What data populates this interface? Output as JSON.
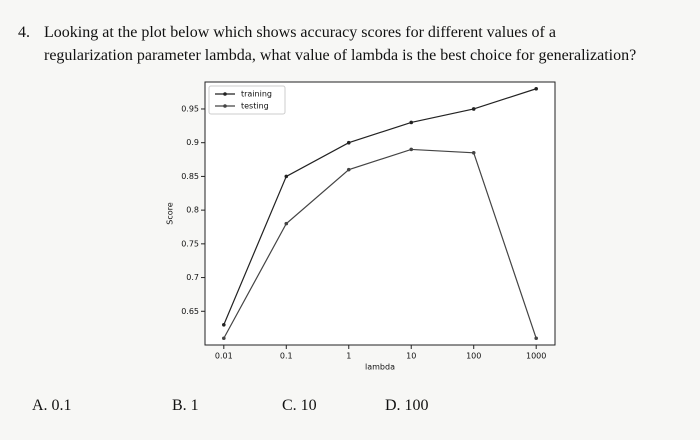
{
  "question": {
    "number": "4.",
    "text_line1": "Looking at the plot below which shows accuracy scores for different values of a",
    "text_line2": "regularization parameter lambda, what value of lambda is the best choice for generalization?"
  },
  "chart_data": {
    "type": "line",
    "xlabel": "lambda",
    "ylabel": "Score",
    "x": [
      0.01,
      0.1,
      1,
      10,
      100,
      1000
    ],
    "xscale": "log",
    "xlim": [
      0.005,
      2000
    ],
    "xticks": [
      0.01,
      0.1,
      1,
      10,
      100,
      1000
    ],
    "ylim": [
      0.6,
      0.99
    ],
    "yticks": [
      0.65,
      0.7,
      0.75,
      0.8,
      0.85,
      0.9,
      0.95
    ],
    "legend": "upper left",
    "series": [
      {
        "name": "training",
        "color": "#222222",
        "values": [
          0.63,
          0.85,
          0.9,
          0.93,
          0.95,
          0.98
        ]
      },
      {
        "name": "testing",
        "color": "#444444",
        "values": [
          0.61,
          0.78,
          0.86,
          0.89,
          0.885,
          0.61
        ]
      }
    ]
  },
  "options": [
    "A. 0.1",
    "B. 1",
    "C. 10",
    "D. 100"
  ]
}
